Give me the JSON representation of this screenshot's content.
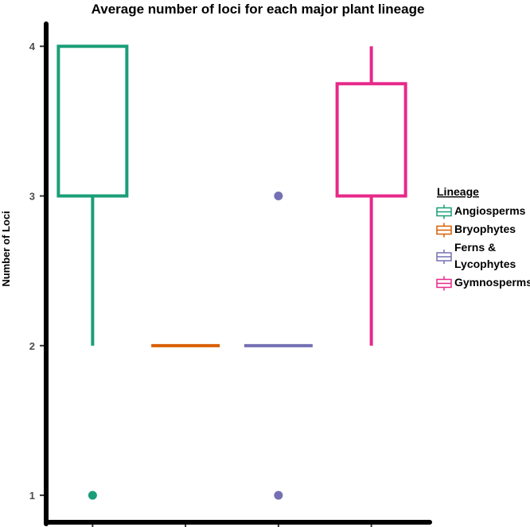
{
  "chart_data": {
    "type": "boxplot",
    "title": "Average number of loci for each major plant lineage",
    "ylabel": "Number of Loci",
    "xlabel": "",
    "ylim": [
      0.82,
      4.15
    ],
    "yticks": [
      1,
      2,
      3,
      4
    ],
    "grid": false,
    "legend": {
      "title": "Lineage",
      "position": "right",
      "entries": [
        {
          "lines": [
            "Angiosperms"
          ],
          "color": "#1b9e77"
        },
        {
          "lines": [
            "Bryophytes"
          ],
          "color": "#d95f02"
        },
        {
          "lines": [
            "Ferns &",
            "Lycophytes"
          ],
          "color": "#7570b3"
        },
        {
          "lines": [
            "Gymnosperms"
          ],
          "color": "#e7298a"
        }
      ]
    },
    "series": [
      {
        "name": "Angiosperms",
        "color": "#1b9e77",
        "min": 2,
        "q1": 3,
        "median": 3,
        "q3": 4,
        "max": 4,
        "outliers": [
          1
        ]
      },
      {
        "name": "Bryophytes",
        "color": "#d95f02",
        "min": 2,
        "q1": 2,
        "median": 2,
        "q3": 2,
        "max": 2,
        "outliers": []
      },
      {
        "name": "Ferns & Lycophytes",
        "color": "#7570b3",
        "min": 2,
        "q1": 2,
        "median": 2,
        "q3": 2,
        "max": 2,
        "outliers": [
          1,
          3
        ]
      },
      {
        "name": "Gymnosperms",
        "color": "#e7298a",
        "min": 2,
        "q1": 3,
        "median": 3,
        "q3": 3.75,
        "max": 4,
        "outliers": []
      }
    ]
  }
}
